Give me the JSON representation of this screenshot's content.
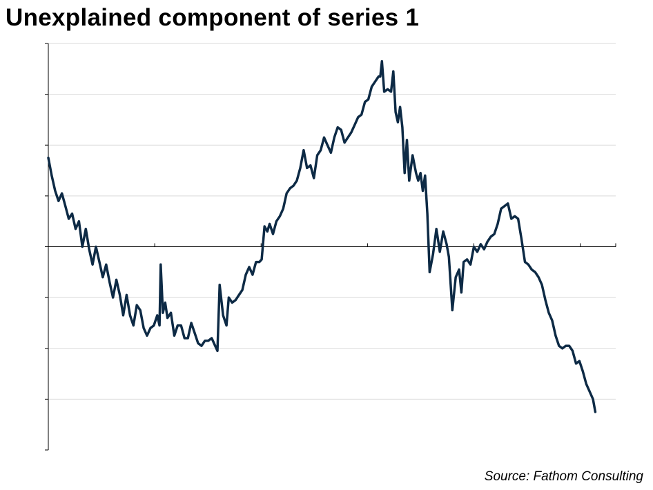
{
  "title": "Unexplained component of series 1",
  "source": "Source: Fathom Consulting",
  "colors": {
    "line": "#0d2a45",
    "grid": "#d9d9d9",
    "axis": "#000000"
  },
  "chart_data": {
    "type": "line",
    "title": "Unexplained component of series 1",
    "xlabel": "",
    "ylabel": "",
    "x_tick_labels": [],
    "y_tick_labels": [],
    "x_range": [
      0,
      100
    ],
    "ylim": [
      -4,
      4
    ],
    "y_gridline_step": 1,
    "x_tick_positions": [
      0,
      18.75,
      37.5,
      56.25,
      75,
      93.75,
      100
    ],
    "grid": true,
    "legend": "none",
    "series": [
      {
        "values": [
          [
            0.0,
            1.75
          ],
          [
            0.6,
            1.4
          ],
          [
            1.2,
            1.1
          ],
          [
            1.8,
            0.9
          ],
          [
            2.4,
            1.05
          ],
          [
            3.0,
            0.8
          ],
          [
            3.6,
            0.55
          ],
          [
            4.2,
            0.65
          ],
          [
            4.8,
            0.35
          ],
          [
            5.4,
            0.5
          ],
          [
            6.0,
            0.0
          ],
          [
            6.6,
            0.35
          ],
          [
            7.2,
            -0.05
          ],
          [
            7.8,
            -0.35
          ],
          [
            8.4,
            0.0
          ],
          [
            9.0,
            -0.3
          ],
          [
            9.6,
            -0.6
          ],
          [
            10.2,
            -0.35
          ],
          [
            10.8,
            -0.7
          ],
          [
            11.4,
            -1.0
          ],
          [
            12.0,
            -0.65
          ],
          [
            12.6,
            -0.95
          ],
          [
            13.2,
            -1.35
          ],
          [
            13.8,
            -0.95
          ],
          [
            14.4,
            -1.35
          ],
          [
            15.0,
            -1.55
          ],
          [
            15.6,
            -1.15
          ],
          [
            16.2,
            -1.25
          ],
          [
            16.8,
            -1.6
          ],
          [
            17.4,
            -1.75
          ],
          [
            18.0,
            -1.6
          ],
          [
            18.6,
            -1.55
          ],
          [
            19.2,
            -1.35
          ],
          [
            19.6,
            -1.55
          ],
          [
            19.8,
            -0.35
          ],
          [
            20.2,
            -1.3
          ],
          [
            20.6,
            -1.1
          ],
          [
            21.0,
            -1.4
          ],
          [
            21.6,
            -1.3
          ],
          [
            22.2,
            -1.75
          ],
          [
            22.8,
            -1.55
          ],
          [
            23.4,
            -1.55
          ],
          [
            24.0,
            -1.8
          ],
          [
            24.6,
            -1.8
          ],
          [
            25.2,
            -1.5
          ],
          [
            25.8,
            -1.7
          ],
          [
            26.4,
            -1.9
          ],
          [
            27.0,
            -1.95
          ],
          [
            27.6,
            -1.85
          ],
          [
            28.2,
            -1.85
          ],
          [
            28.8,
            -1.8
          ],
          [
            29.4,
            -1.95
          ],
          [
            29.8,
            -2.05
          ],
          [
            30.2,
            -0.75
          ],
          [
            30.8,
            -1.35
          ],
          [
            31.4,
            -1.55
          ],
          [
            31.8,
            -1.0
          ],
          [
            32.4,
            -1.1
          ],
          [
            33.0,
            -1.05
          ],
          [
            33.6,
            -0.95
          ],
          [
            34.2,
            -0.85
          ],
          [
            34.8,
            -0.55
          ],
          [
            35.4,
            -0.4
          ],
          [
            36.0,
            -0.55
          ],
          [
            36.6,
            -0.3
          ],
          [
            37.2,
            -0.3
          ],
          [
            37.6,
            -0.25
          ],
          [
            38.1,
            0.4
          ],
          [
            38.6,
            0.3
          ],
          [
            39.0,
            0.45
          ],
          [
            39.6,
            0.25
          ],
          [
            40.2,
            0.5
          ],
          [
            40.8,
            0.6
          ],
          [
            41.4,
            0.75
          ],
          [
            42.0,
            1.05
          ],
          [
            42.6,
            1.15
          ],
          [
            43.2,
            1.2
          ],
          [
            43.8,
            1.3
          ],
          [
            44.4,
            1.55
          ],
          [
            45.0,
            1.9
          ],
          [
            45.6,
            1.55
          ],
          [
            46.2,
            1.6
          ],
          [
            46.8,
            1.35
          ],
          [
            47.4,
            1.8
          ],
          [
            48.0,
            1.9
          ],
          [
            48.6,
            2.15
          ],
          [
            49.2,
            2.0
          ],
          [
            49.8,
            1.85
          ],
          [
            50.4,
            2.15
          ],
          [
            51.0,
            2.35
          ],
          [
            51.6,
            2.3
          ],
          [
            52.2,
            2.05
          ],
          [
            52.8,
            2.15
          ],
          [
            53.4,
            2.25
          ],
          [
            54.0,
            2.4
          ],
          [
            54.6,
            2.55
          ],
          [
            55.2,
            2.6
          ],
          [
            55.8,
            2.85
          ],
          [
            56.4,
            2.9
          ],
          [
            57.0,
            3.15
          ],
          [
            57.6,
            3.25
          ],
          [
            58.2,
            3.35
          ],
          [
            58.5,
            3.35
          ],
          [
            58.8,
            3.65
          ],
          [
            59.2,
            3.05
          ],
          [
            59.8,
            3.1
          ],
          [
            60.4,
            3.05
          ],
          [
            60.8,
            3.45
          ],
          [
            61.2,
            2.65
          ],
          [
            61.6,
            2.45
          ],
          [
            62.0,
            2.75
          ],
          [
            62.4,
            2.35
          ],
          [
            62.8,
            1.45
          ],
          [
            63.2,
            2.1
          ],
          [
            63.6,
            1.3
          ],
          [
            64.2,
            1.8
          ],
          [
            64.8,
            1.45
          ],
          [
            65.2,
            1.3
          ],
          [
            65.6,
            1.45
          ],
          [
            66.0,
            1.1
          ],
          [
            66.4,
            1.4
          ],
          [
            66.8,
            0.65
          ],
          [
            67.2,
            -0.5
          ],
          [
            67.8,
            -0.15
          ],
          [
            68.4,
            0.35
          ],
          [
            69.0,
            -0.1
          ],
          [
            69.6,
            0.3
          ],
          [
            70.2,
            0.05
          ],
          [
            70.6,
            -0.2
          ],
          [
            71.2,
            -1.25
          ],
          [
            71.8,
            -0.6
          ],
          [
            72.4,
            -0.45
          ],
          [
            72.8,
            -0.9
          ],
          [
            73.2,
            -0.3
          ],
          [
            73.8,
            -0.25
          ],
          [
            74.4,
            -0.35
          ],
          [
            75.0,
            0.0
          ],
          [
            75.6,
            -0.1
          ],
          [
            76.2,
            0.05
          ],
          [
            76.8,
            -0.05
          ],
          [
            77.4,
            0.1
          ],
          [
            78.0,
            0.2
          ],
          [
            78.6,
            0.25
          ],
          [
            79.2,
            0.45
          ],
          [
            79.8,
            0.75
          ],
          [
            80.4,
            0.8
          ],
          [
            81.0,
            0.85
          ],
          [
            81.6,
            0.55
          ],
          [
            82.2,
            0.6
          ],
          [
            82.8,
            0.55
          ],
          [
            83.4,
            0.15
          ],
          [
            84.0,
            -0.3
          ],
          [
            84.6,
            -0.35
          ],
          [
            85.2,
            -0.45
          ],
          [
            85.8,
            -0.5
          ],
          [
            86.4,
            -0.6
          ],
          [
            87.0,
            -0.75
          ],
          [
            87.6,
            -1.05
          ],
          [
            88.2,
            -1.3
          ],
          [
            88.8,
            -1.45
          ],
          [
            89.4,
            -1.75
          ],
          [
            90.0,
            -1.95
          ],
          [
            90.6,
            -2.0
          ],
          [
            91.2,
            -1.95
          ],
          [
            91.8,
            -1.95
          ],
          [
            92.4,
            -2.05
          ],
          [
            93.0,
            -2.3
          ],
          [
            93.6,
            -2.25
          ],
          [
            94.2,
            -2.45
          ],
          [
            94.8,
            -2.7
          ],
          [
            95.4,
            -2.85
          ],
          [
            96.0,
            -3.0
          ],
          [
            96.4,
            -3.25
          ]
        ]
      }
    ]
  }
}
